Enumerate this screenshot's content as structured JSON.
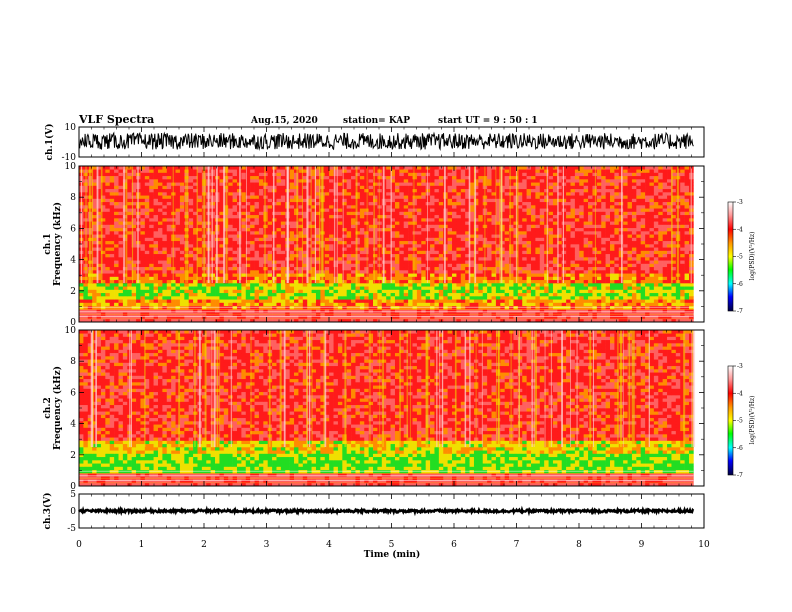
{
  "header": {
    "title": "VLF Spectra",
    "date": "Aug.15, 2020",
    "station": "station= KAP",
    "start": "start  UT =   9 : 50 : 1"
  },
  "chart_data": [
    {
      "type": "line",
      "name": "waveform-ch1",
      "ylabel": "ch.1(V)",
      "ylim": [
        -10,
        10
      ],
      "ytick_labels": [
        "10",
        "-10"
      ],
      "xlim": [
        0,
        10
      ],
      "data_extent": [
        0,
        9.83
      ],
      "description_values": {
        "typical_range_V": [
          -5,
          6
        ],
        "mean_V": 0
      }
    },
    {
      "type": "heatmap",
      "name": "spectrogram-ch1",
      "ylabel": "ch.1\nFrequency  (kHz)",
      "ylim": [
        0,
        10
      ],
      "ytick_labels": [
        "0",
        "2",
        "4",
        "6",
        "8",
        "10"
      ],
      "xlim": [
        0,
        10
      ],
      "data_extent": [
        0,
        9.83
      ],
      "levels": [
        {
          "f_khz": [
            0,
            0.8
          ],
          "log_psd": -3.4
        },
        {
          "f_khz": [
            0.8,
            1.4
          ],
          "log_psd": -4.3
        },
        {
          "f_khz": [
            1.4,
            2.6
          ],
          "log_psd": -4.8
        },
        {
          "f_khz": [
            2.6,
            3.2
          ],
          "log_psd": -4.2
        },
        {
          "f_khz": [
            3.2,
            10
          ],
          "log_psd": -3.8
        }
      ],
      "colorbar": {
        "label": "log(PSD)(V²/Hz)",
        "range": [
          -7,
          -3
        ],
        "ticks": [
          "-3",
          "-4",
          "-5",
          "-6",
          "-7"
        ]
      }
    },
    {
      "type": "heatmap",
      "name": "spectrogram-ch2",
      "ylabel": "ch.2\nFrequency  (kHz)",
      "ylim": [
        0,
        10
      ],
      "ytick_labels": [
        "0",
        "2",
        "4",
        "6",
        "8",
        "10"
      ],
      "xlim": [
        0,
        10
      ],
      "data_extent": [
        0,
        9.83
      ],
      "levels": [
        {
          "f_khz": [
            0,
            0.8
          ],
          "log_psd": -3.4
        },
        {
          "f_khz": [
            0.8,
            2.0
          ],
          "log_psd": -5.0
        },
        {
          "f_khz": [
            2.0,
            3.0
          ],
          "log_psd": -4.6
        },
        {
          "f_khz": [
            3.0,
            10
          ],
          "log_psd": -3.8
        }
      ],
      "colorbar": {
        "label": "log(PSD)(V²/Hz)",
        "range": [
          -7,
          -3
        ],
        "ticks": [
          "-3",
          "-4",
          "-5",
          "-6",
          "-7"
        ]
      }
    },
    {
      "type": "line",
      "name": "waveform-ch3",
      "ylabel": "ch.3(V)",
      "ylim": [
        -5,
        5
      ],
      "ytick_labels": [
        "5",
        "0",
        "-5"
      ],
      "xlim": [
        0,
        10
      ],
      "data_extent": [
        0,
        9.83
      ],
      "description_values": {
        "typical_range_V": [
          -0.4,
          0.4
        ],
        "mean_V": 0
      }
    }
  ],
  "xaxis": {
    "label": "Time  (min)",
    "ticks": [
      "0",
      "1",
      "2",
      "3",
      "4",
      "5",
      "6",
      "7",
      "8",
      "9",
      "10"
    ]
  },
  "colors": {
    "waveform": "#000000",
    "spec_red": "#ff1a1a",
    "spec_orange": "#ff8c00",
    "spec_yellow": "#f0e000",
    "spec_green": "#22dd22",
    "spec_blue": "#0030ff",
    "spec_navy": "#000060"
  }
}
